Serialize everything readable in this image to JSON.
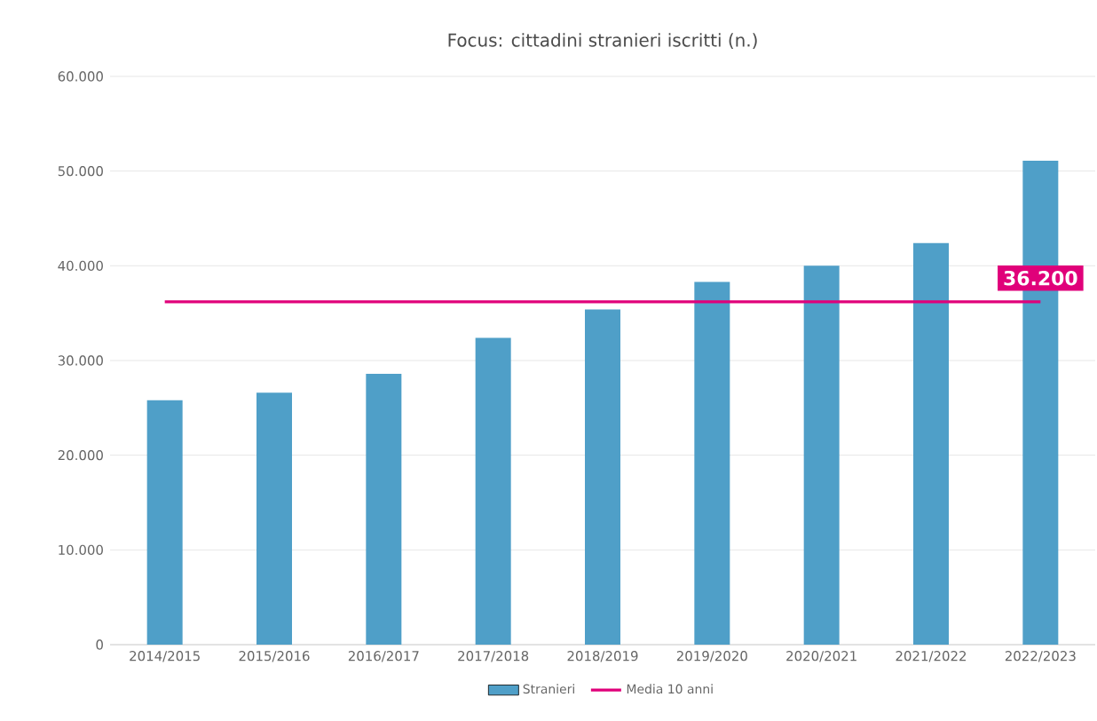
{
  "chart_data": {
    "type": "bar",
    "title": "Focus: cittadini stranieri iscritti (n.)",
    "categories": [
      "2014/2015",
      "2015/2016",
      "2016/2017",
      "2017/2018",
      "2018/2019",
      "2019/2020",
      "2020/2021",
      "2021/2022",
      "2022/2023"
    ],
    "series": [
      {
        "name": "Stranieri",
        "color": "#4f9fc8",
        "values": [
          25800,
          26600,
          28600,
          32400,
          35400,
          38300,
          40000,
          42400,
          51100
        ]
      },
      {
        "name": "Media 10 anni",
        "type": "line",
        "color": "#e0007a",
        "marker": "none",
        "values": [
          36200,
          36200,
          36200,
          36200,
          36200,
          36200,
          36200,
          36200,
          36200
        ]
      }
    ],
    "annotations": [
      {
        "text": "36.200",
        "x": "2022/2023",
        "y": 36200
      }
    ],
    "ylim": [
      0,
      60000
    ],
    "yticks": [
      {
        "value": 0,
        "label": "0"
      },
      {
        "value": 10000,
        "label": "10.000"
      },
      {
        "value": 20000,
        "label": "20.000"
      },
      {
        "value": 30000,
        "label": "30.000"
      },
      {
        "value": 40000,
        "label": "40.000"
      },
      {
        "value": 50000,
        "label": "50.000"
      },
      {
        "value": 60000,
        "label": "60.000"
      }
    ],
    "grid": "y",
    "legend": "bottom"
  }
}
